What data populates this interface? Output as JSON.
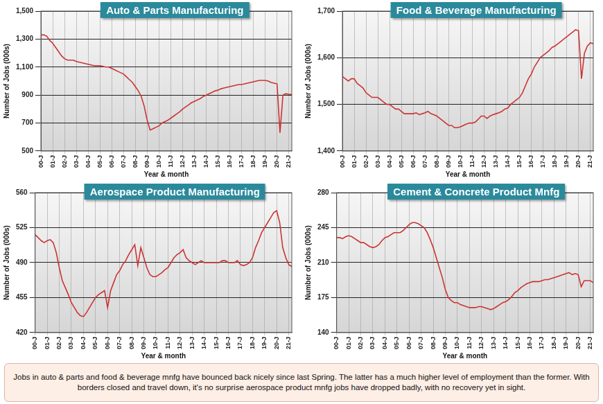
{
  "chart_data": [
    {
      "type": "line",
      "title": "Auto & Parts Manufacturing",
      "x_label": "Year & month",
      "y_label": "Number of Jobs (000s)",
      "color": "#cc3333",
      "marker": "none",
      "line_style": "solid",
      "grid": true,
      "ylim": [
        500,
        1500
      ],
      "yticks": [
        500,
        700,
        900,
        {
          "value": 1100,
          "label": "1,100"
        },
        {
          "value": 1300,
          "label": "1,300"
        },
        {
          "value": 1500,
          "label": "1,500"
        }
      ],
      "categories": [
        "00-J",
        null,
        null,
        null,
        "01-J",
        null,
        null,
        null,
        "02-J",
        null,
        null,
        null,
        "03-J",
        null,
        null,
        null,
        "04-J",
        null,
        null,
        null,
        "05-J",
        null,
        null,
        null,
        "06-J",
        null,
        null,
        null,
        "07-J",
        null,
        null,
        null,
        "08-J",
        null,
        null,
        null,
        "09-J",
        null,
        null,
        null,
        "10-J",
        null,
        null,
        null,
        "11-J",
        null,
        null,
        null,
        "12-J",
        null,
        null,
        null,
        "13-J",
        null,
        null,
        null,
        "14-J",
        null,
        null,
        null,
        "15-J",
        null,
        null,
        null,
        "16-J",
        null,
        null,
        null,
        "17-J",
        null,
        null,
        null,
        "18-J",
        null,
        null,
        null,
        "19-J",
        null,
        null,
        null,
        "20-J",
        null,
        null,
        null,
        "21-J",
        null
      ],
      "values": [
        1330,
        1330,
        1320,
        1290,
        1270,
        1240,
        1210,
        1180,
        1160,
        1150,
        1150,
        1150,
        1140,
        1135,
        1130,
        1125,
        1120,
        1115,
        1110,
        1110,
        1110,
        1105,
        1100,
        1100,
        1090,
        1080,
        1070,
        1060,
        1050,
        1030,
        1010,
        990,
        960,
        930,
        890,
        820,
        720,
        650,
        660,
        670,
        680,
        700,
        710,
        720,
        735,
        750,
        765,
        780,
        800,
        815,
        830,
        845,
        855,
        865,
        875,
        890,
        900,
        910,
        920,
        930,
        935,
        945,
        950,
        955,
        960,
        965,
        970,
        975,
        975,
        980,
        985,
        990,
        995,
        1000,
        1005,
        1005,
        1005,
        1000,
        990,
        985,
        980,
        630,
        900,
        910,
        905,
        905
      ]
    },
    {
      "type": "line",
      "title": "Food & Beverage Manufacturing",
      "x_label": "Year & month",
      "y_label": "Number of Jobs (000s)",
      "color": "#cc3333",
      "marker": "none",
      "line_style": "solid",
      "grid": true,
      "ylim": [
        1400,
        1700
      ],
      "yticks": [
        {
          "value": 1400,
          "label": "1,400"
        },
        {
          "value": 1500,
          "label": "1,500"
        },
        {
          "value": 1600,
          "label": "1,600"
        },
        {
          "value": 1700,
          "label": "1,700"
        }
      ],
      "categories": [
        "00-J",
        null,
        null,
        null,
        "01-J",
        null,
        null,
        null,
        "02-J",
        null,
        null,
        null,
        "03-J",
        null,
        null,
        null,
        "04-J",
        null,
        null,
        null,
        "05-J",
        null,
        null,
        null,
        "06-J",
        null,
        null,
        null,
        "07-J",
        null,
        null,
        null,
        "08-J",
        null,
        null,
        null,
        "09-J",
        null,
        null,
        null,
        "10-J",
        null,
        null,
        null,
        "11-J",
        null,
        null,
        null,
        "12-J",
        null,
        null,
        null,
        "13-J",
        null,
        null,
        null,
        "14-J",
        null,
        null,
        null,
        "15-J",
        null,
        null,
        null,
        "16-J",
        null,
        null,
        null,
        "17-J",
        null,
        null,
        null,
        "18-J",
        null,
        null,
        null,
        "19-J",
        null,
        null,
        null,
        "20-J",
        null,
        null,
        null,
        "21-J",
        null
      ],
      "values": [
        1560,
        1555,
        1550,
        1555,
        1555,
        1545,
        1540,
        1535,
        1525,
        1520,
        1515,
        1515,
        1515,
        1510,
        1505,
        1500,
        1500,
        1495,
        1490,
        1490,
        1485,
        1480,
        1480,
        1480,
        1480,
        1482,
        1478,
        1480,
        1482,
        1485,
        1480,
        1478,
        1475,
        1470,
        1465,
        1460,
        1455,
        1455,
        1450,
        1450,
        1452,
        1455,
        1458,
        1460,
        1460,
        1462,
        1468,
        1475,
        1475,
        1470,
        1475,
        1478,
        1480,
        1482,
        1485,
        1490,
        1492,
        1500,
        1505,
        1510,
        1515,
        1525,
        1540,
        1555,
        1565,
        1580,
        1590,
        1600,
        1605,
        1610,
        1615,
        1622,
        1625,
        1630,
        1635,
        1640,
        1645,
        1650,
        1655,
        1660,
        1658,
        1555,
        1610,
        1625,
        1632,
        1630
      ]
    },
    {
      "type": "line",
      "title": "Aerospace Product Manufacturing",
      "x_label": "Year & month",
      "y_label": "Number of Jobs (000s)",
      "color": "#cc3333",
      "marker": "none",
      "line_style": "solid",
      "grid": true,
      "ylim": [
        420,
        560
      ],
      "yticks": [
        420,
        455,
        490,
        525,
        560
      ],
      "categories": [
        "00-J",
        null,
        null,
        null,
        "01-J",
        null,
        null,
        null,
        "02-J",
        null,
        null,
        null,
        "03-J",
        null,
        null,
        null,
        "04-J",
        null,
        null,
        null,
        "05-J",
        null,
        null,
        null,
        "06-J",
        null,
        null,
        null,
        "07-J",
        null,
        null,
        null,
        "08-J",
        null,
        null,
        null,
        "09-J",
        null,
        null,
        null,
        "10-J",
        null,
        null,
        null,
        "11-J",
        null,
        null,
        null,
        "12-J",
        null,
        null,
        null,
        "13-J",
        null,
        null,
        null,
        "14-J",
        null,
        null,
        null,
        "15-J",
        null,
        null,
        null,
        "16-J",
        null,
        null,
        null,
        "17-J",
        null,
        null,
        null,
        "18-J",
        null,
        null,
        null,
        "19-J",
        null,
        null,
        null,
        "20-J",
        null,
        null,
        null,
        "21-J",
        null
      ],
      "values": [
        518,
        515,
        512,
        510,
        512,
        513,
        510,
        500,
        485,
        472,
        465,
        458,
        450,
        445,
        440,
        437,
        436,
        440,
        445,
        450,
        455,
        458,
        460,
        462,
        445,
        462,
        470,
        478,
        482,
        488,
        492,
        498,
        503,
        508,
        487,
        505,
        495,
        485,
        478,
        476,
        476,
        478,
        480,
        483,
        485,
        490,
        495,
        498,
        500,
        503,
        495,
        492,
        490,
        488,
        490,
        492,
        490,
        490,
        490,
        490,
        490,
        490,
        492,
        492,
        490,
        490,
        490,
        492,
        488,
        487,
        488,
        490,
        495,
        505,
        512,
        520,
        525,
        530,
        535,
        540,
        542,
        530,
        505,
        495,
        488,
        486
      ]
    },
    {
      "type": "line",
      "title": "Cement & Concrete Product Mnfg",
      "x_label": "Year & month",
      "y_label": "Number of Jobs (000s)",
      "color": "#cc3333",
      "marker": "none",
      "line_style": "solid",
      "grid": true,
      "ylim": [
        140,
        280
      ],
      "yticks": [
        140,
        175,
        210,
        245,
        280
      ],
      "categories": [
        "00-J",
        null,
        null,
        null,
        "01-J",
        null,
        null,
        null,
        "02-J",
        null,
        null,
        null,
        "03-J",
        null,
        null,
        null,
        "04-J",
        null,
        null,
        null,
        "05-J",
        null,
        null,
        null,
        "06-J",
        null,
        null,
        null,
        "07-J",
        null,
        null,
        null,
        "08-J",
        null,
        null,
        null,
        "09-J",
        null,
        null,
        null,
        "10-J",
        null,
        null,
        null,
        "11-J",
        null,
        null,
        null,
        "12-J",
        null,
        null,
        null,
        "13-J",
        null,
        null,
        null,
        "14-J",
        null,
        null,
        null,
        "15-J",
        null,
        null,
        null,
        "16-J",
        null,
        null,
        null,
        "17-J",
        null,
        null,
        null,
        "18-J",
        null,
        null,
        null,
        "19-J",
        null,
        null,
        null,
        "20-J",
        null,
        null,
        null,
        "21-J",
        null
      ],
      "values": [
        235,
        235,
        234,
        236,
        237,
        236,
        234,
        232,
        230,
        230,
        228,
        226,
        225,
        226,
        228,
        232,
        235,
        236,
        238,
        240,
        240,
        240,
        242,
        245,
        248,
        250,
        250,
        249,
        247,
        245,
        240,
        233,
        225,
        215,
        205,
        195,
        183,
        175,
        172,
        170,
        170,
        168,
        167,
        166,
        165,
        165,
        165,
        166,
        166,
        165,
        164,
        163,
        164,
        166,
        168,
        170,
        171,
        173,
        176,
        180,
        182,
        185,
        187,
        189,
        190,
        191,
        191,
        191,
        192,
        193,
        193,
        194,
        195,
        196,
        197,
        198,
        199,
        200,
        198,
        199,
        198,
        186,
        192,
        192,
        192,
        190
      ]
    }
  ],
  "caption": "Jobs in auto & parts and food & beverage mnfg have bounced back nicely since last Spring. The latter has a much higher level of employment than the former. With borders closed and travel down, it's no surprise aerospace product mnfg jobs have dropped badly, with no recovery yet in sight."
}
